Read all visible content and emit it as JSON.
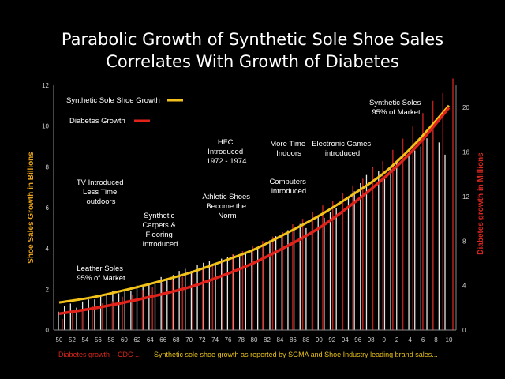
{
  "chart_data": {
    "type": "bar+line",
    "title_lines": [
      "Parabolic Growth of Synthetic Sole Shoe Sales",
      "Correlates With Growth of Diabetes"
    ],
    "ylabel_left": "Shoe Sales Growth in Billions",
    "ylabel_right": "Diabetes growth in Millions",
    "ylim_left": [
      0,
      12
    ],
    "ylim_right": [
      0,
      22
    ],
    "yticks_left": [
      0,
      2,
      4,
      6,
      8,
      10,
      12
    ],
    "yticks_right": [
      0,
      4,
      8,
      12,
      16,
      20
    ],
    "xticks": [
      "50",
      "52",
      "54",
      "56",
      "58",
      "60",
      "62",
      "64",
      "66",
      "68",
      "70",
      "72",
      "74",
      "76",
      "78",
      "80",
      "82",
      "84",
      "86",
      "88",
      "90",
      "92",
      "94",
      "96",
      "98",
      "0",
      "2",
      "4",
      "6",
      "8",
      "10"
    ],
    "shoe_bar_values": [
      0.9,
      1.2,
      1.3,
      1.1,
      1.4,
      1.5,
      1.5,
      1.7,
      1.8,
      1.9,
      1.8,
      2.0,
      1.9,
      2.2,
      2.1,
      2.3,
      2.4,
      2.6,
      2.5,
      2.7,
      2.9,
      3.0,
      2.9,
      3.2,
      3.3,
      3.4,
      3.3,
      3.5,
      3.6,
      3.7,
      3.6,
      3.8,
      3.9,
      4.0,
      4.2,
      4.4,
      4.6,
      4.7,
      4.9,
      5.0,
      5.2,
      5.0,
      5.4,
      5.6,
      5.5,
      5.8,
      6.0,
      6.2,
      6.5,
      6.8,
      7.2,
      7.6,
      8.0,
      7.8,
      7.5,
      7.9,
      8.2,
      8.0,
      8.6,
      8.8,
      9.0,
      9.4,
      9.8,
      9.2,
      8.6
    ],
    "diabetes_bar_values": [
      1.0,
      1.5,
      1.8,
      2.2,
      2.4,
      2.6,
      3.0,
      3.2,
      3.6,
      3.9,
      4.2,
      4.5,
      4.8,
      5.2,
      5.5,
      5.9,
      6.3,
      6.8,
      7.1,
      7.6,
      8.0,
      8.4,
      8.8,
      9.5,
      10.0,
      10.6,
      11.2,
      11.6,
      12.3,
      13.0,
      13.6,
      14.6,
      15.2,
      16.2,
      17.2,
      18.3,
      19.5,
      20.6,
      21.3,
      22.6
    ],
    "series": [
      {
        "name": "Synthetic Sole Shoe Growth",
        "color": "#f2c21b",
        "x": [
          1950,
          1955,
          1960,
          1965,
          1970,
          1975,
          1980,
          1985,
          1990,
          1995,
          2000,
          2005,
          2010
        ],
        "values": [
          1.35,
          1.6,
          1.95,
          2.35,
          2.8,
          3.35,
          3.95,
          4.75,
          5.6,
          6.6,
          7.7,
          9.2,
          11.0
        ]
      },
      {
        "name": "Diabetes Growth",
        "color": "#e0231b",
        "x": [
          1950,
          1955,
          1960,
          1965,
          1970,
          1975,
          1980,
          1985,
          1990,
          1995,
          2000,
          2005,
          2010
        ],
        "values": [
          0.8,
          1.05,
          1.35,
          1.7,
          2.1,
          2.65,
          3.3,
          4.1,
          5.0,
          6.15,
          7.45,
          9.0,
          10.9
        ]
      }
    ],
    "annotations": [
      {
        "lines": [
          "TV Introduced",
          "Less Time",
          "outdoors"
        ]
      },
      {
        "lines": [
          "Leather Soles",
          "95% of Market"
        ]
      },
      {
        "lines": [
          "Synthetic",
          "Carpets &",
          "Flooring",
          "Introduced"
        ]
      },
      {
        "lines": [
          "HFC",
          "Introduced",
          "1972 - 1974"
        ]
      },
      {
        "lines": [
          "Athletic Shoes",
          "Become the",
          "Norm"
        ]
      },
      {
        "lines": [
          "More Time",
          "Indoors"
        ]
      },
      {
        "lines": [
          "Computers",
          "introduced"
        ]
      },
      {
        "lines": [
          "Electronic Games",
          "introduced"
        ]
      },
      {
        "lines": [
          "Synthetic Soles",
          "95% of Market"
        ]
      }
    ],
    "legend": [
      {
        "label": "Synthetic Sole Shoe Growth",
        "color": "#f2c21b"
      },
      {
        "label": "Diabetes Growth",
        "color": "#e0231b"
      }
    ],
    "footer_red": "Diabetes growth – CDC ...",
    "footer_yellow": "Synthetic sole shoe growth as reported by SGMA and Shoe Industry leading brand sales..."
  }
}
